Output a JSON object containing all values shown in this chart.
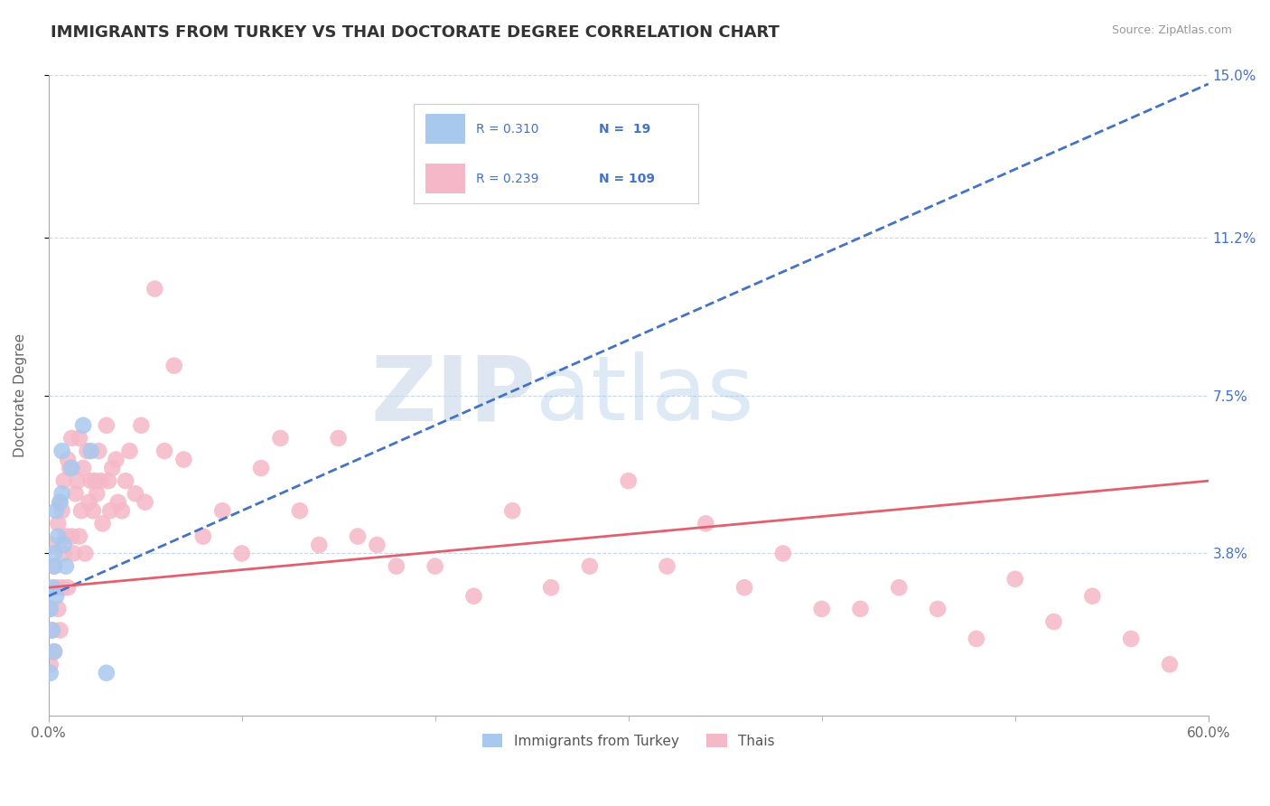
{
  "title": "IMMIGRANTS FROM TURKEY VS THAI DOCTORATE DEGREE CORRELATION CHART",
  "source": "Source: ZipAtlas.com",
  "ylabel": "Doctorate Degree",
  "xlim": [
    0.0,
    0.6
  ],
  "ylim": [
    0.0,
    0.15
  ],
  "yticks": [
    0.038,
    0.075,
    0.112,
    0.15
  ],
  "ytick_labels": [
    "3.8%",
    "7.5%",
    "11.2%",
    "15.0%"
  ],
  "xticks": [
    0.0,
    0.6
  ],
  "xtick_labels": [
    "0.0%",
    "60.0%"
  ],
  "grid_color": "#c8d8e8",
  "background_color": "#ffffff",
  "watermark": "ZIPatlas",
  "blue_color": "#a8c8ee",
  "pink_color": "#f5b8c8",
  "blue_line_color": "#4472C4",
  "pink_line_color": "#e06070",
  "title_fontsize": 13,
  "axis_label_fontsize": 11,
  "tick_fontsize": 11,
  "blue_trend_x": [
    0.0,
    0.6
  ],
  "blue_trend_y": [
    0.028,
    0.148
  ],
  "pink_trend_x": [
    0.0,
    0.6
  ],
  "pink_trend_y": [
    0.03,
    0.055
  ],
  "turkey_points_x": [
    0.001,
    0.001,
    0.002,
    0.002,
    0.003,
    0.003,
    0.003,
    0.004,
    0.004,
    0.005,
    0.006,
    0.007,
    0.007,
    0.008,
    0.009,
    0.012,
    0.018,
    0.022,
    0.03
  ],
  "turkey_points_y": [
    0.01,
    0.025,
    0.03,
    0.02,
    0.035,
    0.015,
    0.038,
    0.028,
    0.048,
    0.042,
    0.05,
    0.052,
    0.062,
    0.04,
    0.035,
    0.058,
    0.068,
    0.062,
    0.01
  ],
  "thai_points_x": [
    0.001,
    0.001,
    0.002,
    0.002,
    0.003,
    0.003,
    0.004,
    0.005,
    0.005,
    0.006,
    0.006,
    0.007,
    0.007,
    0.008,
    0.008,
    0.009,
    0.01,
    0.01,
    0.011,
    0.012,
    0.012,
    0.013,
    0.014,
    0.015,
    0.016,
    0.016,
    0.017,
    0.018,
    0.019,
    0.02,
    0.021,
    0.022,
    0.023,
    0.024,
    0.025,
    0.026,
    0.027,
    0.028,
    0.03,
    0.031,
    0.032,
    0.033,
    0.035,
    0.036,
    0.038,
    0.04,
    0.042,
    0.045,
    0.048,
    0.05,
    0.055,
    0.06,
    0.065,
    0.07,
    0.08,
    0.09,
    0.1,
    0.11,
    0.12,
    0.13,
    0.14,
    0.15,
    0.16,
    0.17,
    0.18,
    0.2,
    0.22,
    0.24,
    0.26,
    0.28,
    0.3,
    0.32,
    0.34,
    0.36,
    0.38,
    0.4,
    0.42,
    0.44,
    0.46,
    0.48,
    0.5,
    0.52,
    0.54,
    0.56,
    0.58
  ],
  "thai_points_y": [
    0.012,
    0.025,
    0.02,
    0.04,
    0.015,
    0.035,
    0.03,
    0.045,
    0.025,
    0.05,
    0.02,
    0.048,
    0.03,
    0.055,
    0.038,
    0.042,
    0.06,
    0.03,
    0.058,
    0.042,
    0.065,
    0.038,
    0.052,
    0.055,
    0.042,
    0.065,
    0.048,
    0.058,
    0.038,
    0.062,
    0.05,
    0.055,
    0.048,
    0.055,
    0.052,
    0.062,
    0.055,
    0.045,
    0.068,
    0.055,
    0.048,
    0.058,
    0.06,
    0.05,
    0.048,
    0.055,
    0.062,
    0.052,
    0.068,
    0.05,
    0.1,
    0.062,
    0.082,
    0.06,
    0.042,
    0.048,
    0.038,
    0.058,
    0.065,
    0.048,
    0.04,
    0.065,
    0.042,
    0.04,
    0.035,
    0.035,
    0.028,
    0.048,
    0.03,
    0.035,
    0.055,
    0.035,
    0.045,
    0.03,
    0.038,
    0.025,
    0.025,
    0.03,
    0.025,
    0.018,
    0.032,
    0.022,
    0.028,
    0.018,
    0.012
  ]
}
